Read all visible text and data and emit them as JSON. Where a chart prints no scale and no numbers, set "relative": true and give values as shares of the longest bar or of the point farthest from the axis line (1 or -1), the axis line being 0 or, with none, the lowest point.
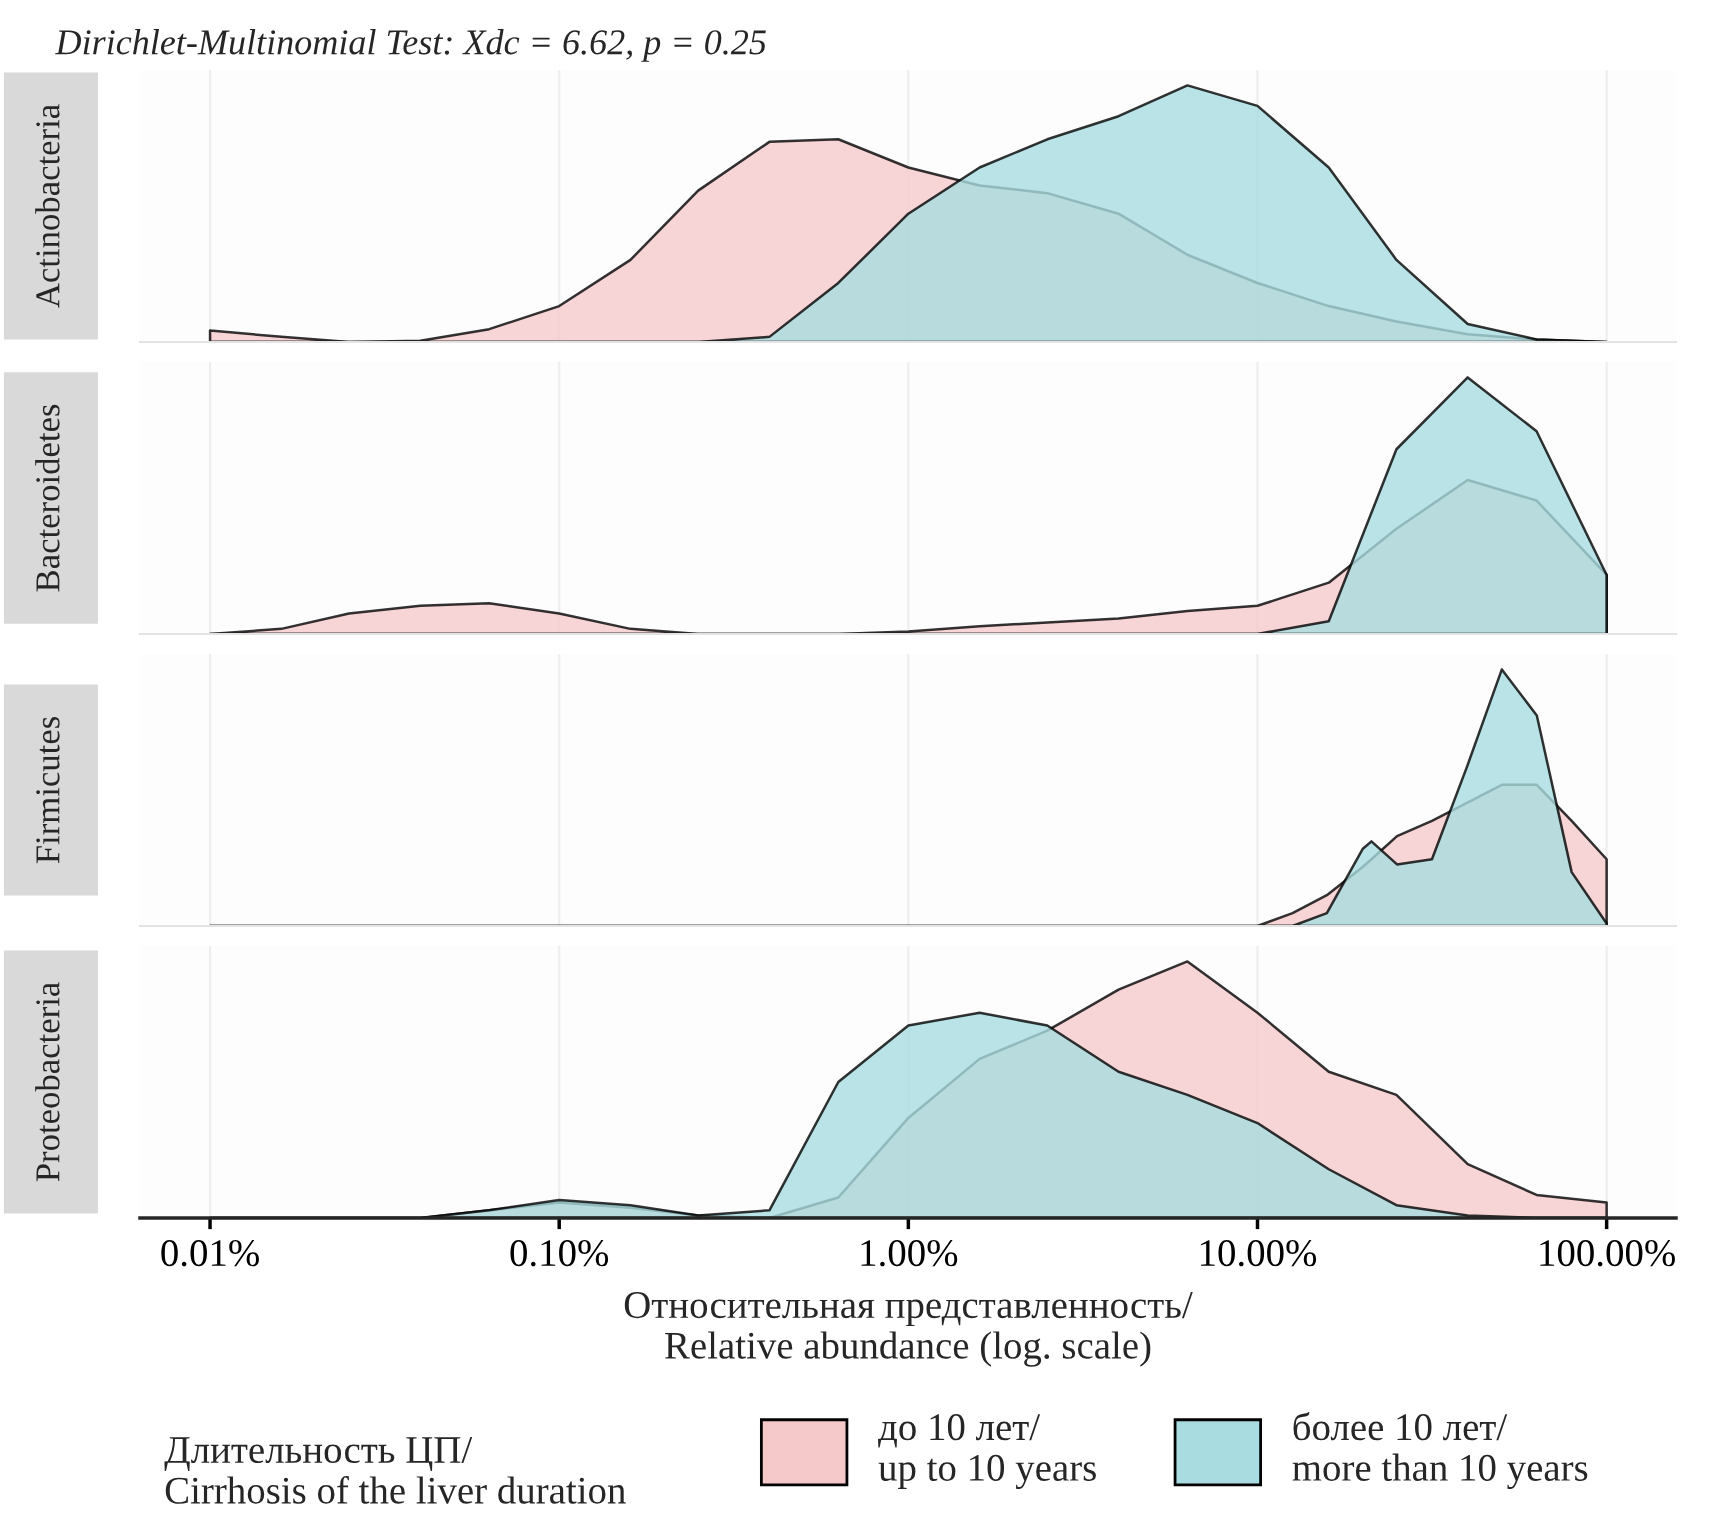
{
  "chart_data": [
    {
      "type": "area",
      "relative": true,
      "log": "x",
      "title": "Actinobacteria",
      "annotations": [
        "Dirichlet-Multinomial Test: Xdc = 6.62, p = 0.25"
      ],
      "tick_labels": false,
      "grid": true,
      "xlim": [
        0.0063,
        158
      ],
      "x": [
        0.01,
        0.016,
        0.025,
        0.04,
        0.063,
        0.1,
        0.16,
        0.25,
        0.4,
        0.63,
        1,
        1.6,
        2.5,
        4,
        6.3,
        10,
        16,
        25,
        40,
        63,
        100
      ],
      "series": [
        {
          "color": "#f5c9ca",
          "values": [
            0.045,
            0.02,
            0,
            0.005,
            0.05,
            0.14,
            0.32,
            0.59,
            0.78,
            0.79,
            0.68,
            0.61,
            0.58,
            0.5,
            0.34,
            0.23,
            0.14,
            0.08,
            0.03,
            0.01,
            0
          ]
        },
        {
          "color": "#a8dce0",
          "values": [
            0,
            0,
            0,
            0,
            0,
            0,
            0,
            0,
            0.02,
            0.23,
            0.5,
            0.68,
            0.79,
            0.88,
            1.0,
            0.92,
            0.68,
            0.32,
            0.07,
            0.01,
            0
          ]
        }
      ]
    },
    {
      "type": "area",
      "relative": true,
      "log": "x",
      "title": "Bacteroidetes",
      "tick_labels": false,
      "grid": true,
      "xlim": [
        0.0063,
        158
      ],
      "x": [
        0.01,
        0.016,
        0.025,
        0.04,
        0.063,
        0.1,
        0.16,
        0.25,
        0.4,
        0.63,
        1,
        1.6,
        2.5,
        4,
        6.3,
        10,
        16,
        25,
        40,
        63,
        100
      ],
      "series": [
        {
          "color": "#f5c9ca",
          "values": [
            0,
            0.02,
            0.08,
            0.11,
            0.12,
            0.08,
            0.02,
            0,
            0,
            0,
            0.01,
            0.03,
            0.045,
            0.06,
            0.09,
            0.11,
            0.2,
            0.41,
            0.6,
            0.52,
            0.23
          ]
        },
        {
          "color": "#a8dce0",
          "values": [
            0,
            0,
            0,
            0,
            0,
            0,
            0,
            0,
            0,
            0,
            0,
            0,
            0,
            0,
            0,
            0,
            0.05,
            0.72,
            1.0,
            0.79,
            0.23
          ]
        }
      ]
    },
    {
      "type": "area",
      "relative": true,
      "log": "x",
      "title": "Firmicutes",
      "tick_labels": false,
      "grid": true,
      "xlim": [
        0.0063,
        158
      ],
      "x": [
        0.01,
        0.1,
        1,
        5,
        10,
        12.6,
        15.8,
        20,
        21.2,
        25.1,
        31.6,
        39.8,
        50.1,
        63.1,
        79.4,
        100
      ],
      "series": [
        {
          "color": "#f5c9ca",
          "values": [
            0,
            0,
            0,
            0,
            0,
            0.05,
            0.12,
            0.23,
            0.26,
            0.35,
            0.41,
            0.48,
            0.55,
            0.55,
            0.41,
            0.26
          ]
        },
        {
          "color": "#a8dce0",
          "values": [
            0,
            0,
            0,
            0,
            0,
            0,
            0.05,
            0.3,
            0.33,
            0.24,
            0.26,
            0.62,
            1.0,
            0.82,
            0.21,
            0.01
          ]
        }
      ]
    },
    {
      "type": "area",
      "relative": true,
      "log": "x",
      "title": "Proteobacteria",
      "tick_labels": "x",
      "grid": true,
      "xlabel": "Относительная представленность/\nRelative abundance (log. scale)",
      "legend": "bottom",
      "legend_title": "Длительность ЦП/\nCirrhosis of the liver duration",
      "xlim": [
        0.0063,
        158
      ],
      "xticks": [
        {
          "value": 0.01,
          "label": "0.01%"
        },
        {
          "value": 0.1,
          "label": "0.10%"
        },
        {
          "value": 1,
          "label": "1.00%"
        },
        {
          "value": 10,
          "label": "10.00%"
        },
        {
          "value": 100,
          "label": "100.00%"
        }
      ],
      "x": [
        0.01,
        0.016,
        0.025,
        0.04,
        0.063,
        0.1,
        0.16,
        0.25,
        0.4,
        0.63,
        1,
        1.6,
        2.5,
        4,
        6.3,
        10,
        16,
        25,
        40,
        63,
        100
      ],
      "series": [
        {
          "name": "до 10 лет/\nup to 10 years",
          "color": "#f5c9ca",
          "values": [
            0,
            0,
            0,
            0,
            0.03,
            0.06,
            0.04,
            0.01,
            0,
            0.08,
            0.39,
            0.62,
            0.73,
            0.89,
            1.0,
            0.8,
            0.57,
            0.48,
            0.21,
            0.09,
            0.06
          ]
        },
        {
          "name": "более 10 лет/\nmore than 10 years",
          "color": "#a8dce0",
          "values": [
            0,
            0,
            0,
            0,
            0.03,
            0.07,
            0.05,
            0.01,
            0.03,
            0.53,
            0.75,
            0.8,
            0.75,
            0.57,
            0.48,
            0.37,
            0.19,
            0.05,
            0.01,
            0,
            0
          ]
        }
      ]
    }
  ]
}
